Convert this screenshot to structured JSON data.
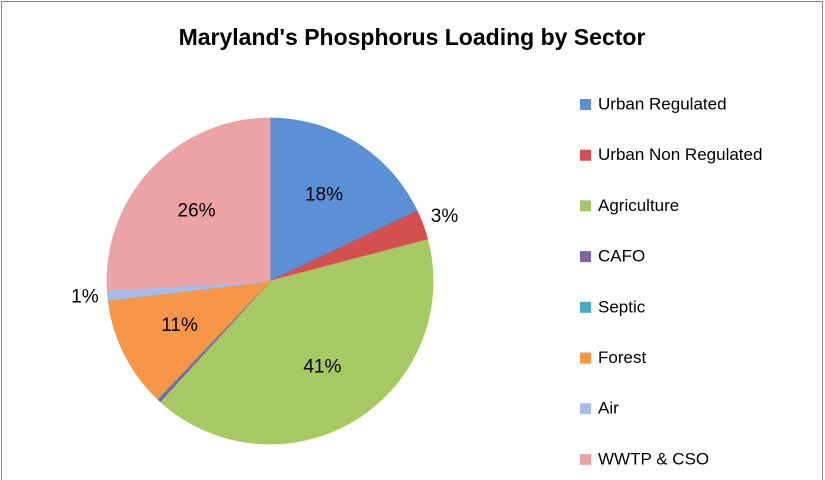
{
  "chart_data": {
    "type": "pie",
    "title": "Maryland's Phosphorus Loading by Sector",
    "categories": [
      "Urban Regulated",
      "Urban Non Regulated",
      "Agriculture",
      "CAFO",
      "Septic",
      "Forest",
      "Air",
      "WWTP & CSO"
    ],
    "values": [
      18,
      3,
      41,
      0.3,
      0.1,
      11,
      1,
      26
    ],
    "value_labels": [
      "18%",
      "3%",
      "41%",
      null,
      null,
      "11%",
      "1%",
      "26%"
    ],
    "colors": [
      "#5b8fd6",
      "#d2504d",
      "#a6c964",
      "#8064a2",
      "#4bacc6",
      "#f79646",
      "#a5bde8",
      "#eba3a5"
    ],
    "legend": "right"
  }
}
